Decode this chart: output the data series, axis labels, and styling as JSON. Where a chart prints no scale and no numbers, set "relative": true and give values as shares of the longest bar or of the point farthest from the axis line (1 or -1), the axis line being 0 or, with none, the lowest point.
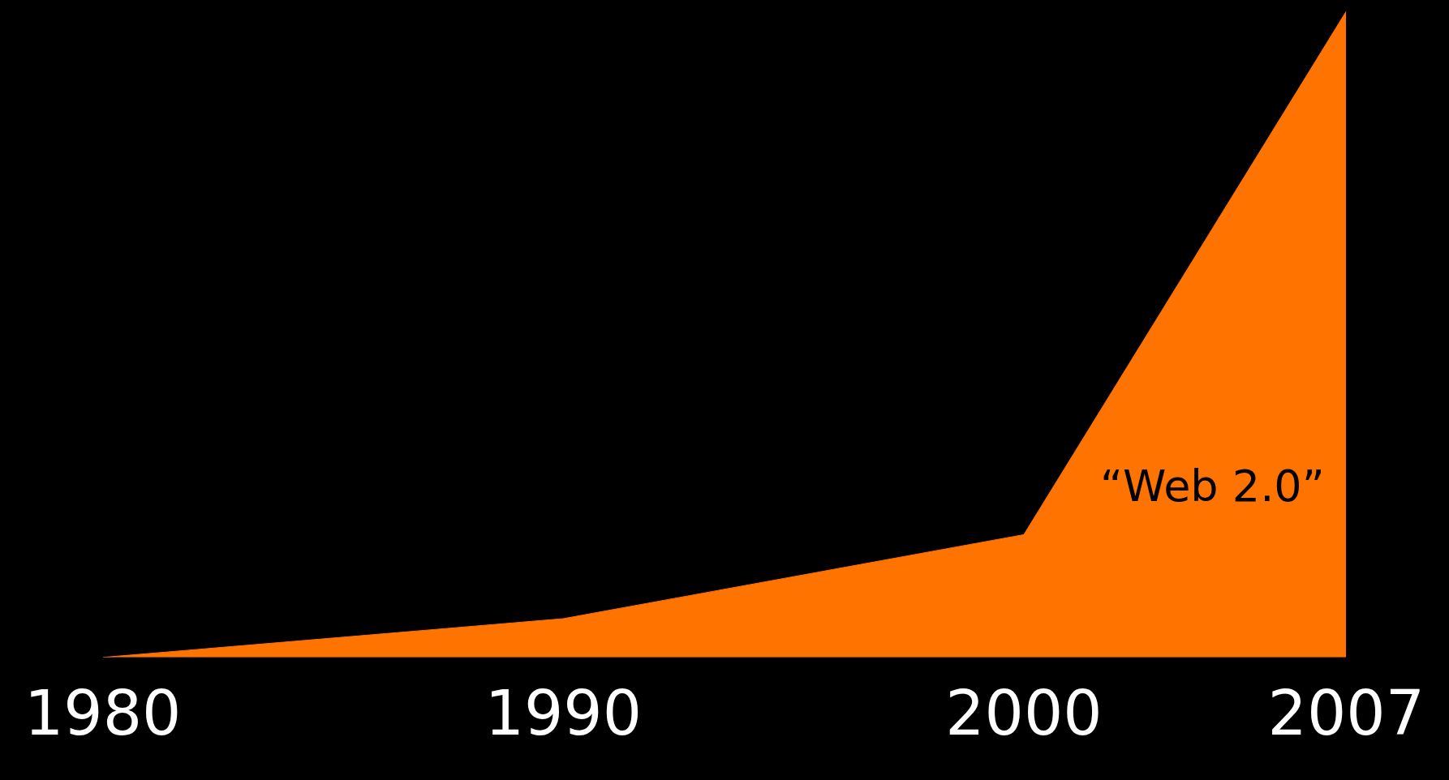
{
  "chart_data": {
    "type": "area",
    "relative": true,
    "x": [
      1980,
      1990,
      2000,
      2007
    ],
    "series": [
      {
        "color": "#ff7300",
        "values": [
          0,
          0.06,
          0.19,
          1
        ]
      }
    ],
    "xlim": [
      1980,
      2007
    ],
    "xticks": [
      1980,
      1990,
      2000,
      2007
    ],
    "tick_labels": "x",
    "grid": false,
    "legend": false,
    "annotations": [
      "“Web 2.0”"
    ]
  }
}
